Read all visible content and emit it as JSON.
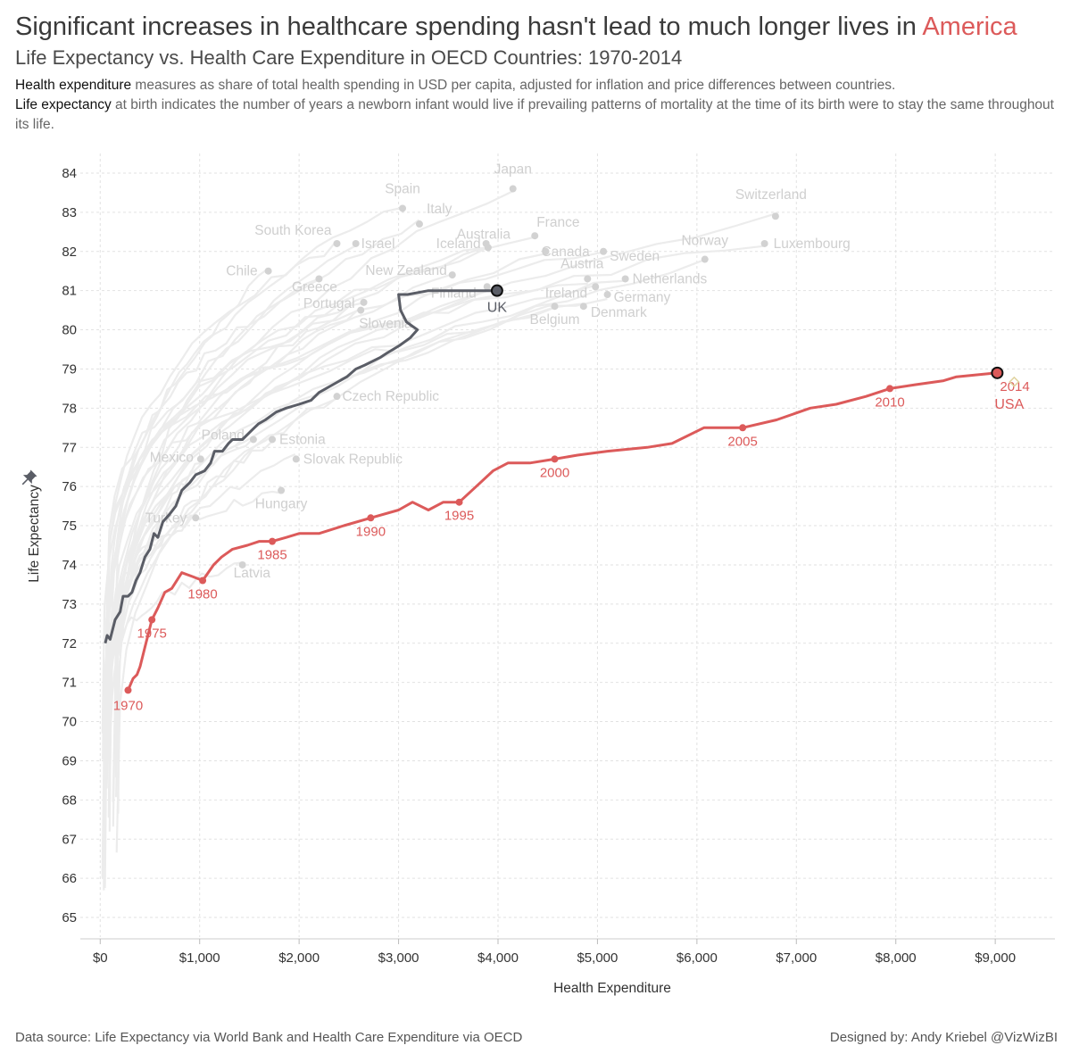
{
  "header": {
    "title_main": "Significant increases in healthcare spending hasn't lead to much longer lives in ",
    "title_accent": "America",
    "subtitle": "Life Expectancy vs. Health Care Expenditure in OECD Countries: 1970-2014",
    "desc1_term": "Health expenditure",
    "desc1_text": " measures as share of total health spending in USD per capita, adjusted for inflation and price differences between countries.",
    "desc2_term": "Life expectancy",
    "desc2_text": " at birth indicates the number of years a newborn infant would live if prevailing patterns of mortality at the time of its birth were to stay the same throughout its life."
  },
  "footer": {
    "source": "Data source: Life Expectancy via World Bank and Health Care Expenditure via OECD",
    "credit": "Designed by: Andy Kriebel @VizWizBI"
  },
  "colors": {
    "usa": "#dc5a5a",
    "uk": "#5a5d66",
    "other_lines": "#ececec",
    "other_dots": "#d2d2d2",
    "other_labels": "#cfcfcf",
    "grid": "#e2e2e2",
    "axis_text": "#333333"
  },
  "chart_data": {
    "type": "line",
    "xlabel": "Health Expenditure",
    "ylabel": "Life Expectancy",
    "xlim": [
      -200,
      9600
    ],
    "ylim": [
      64.5,
      84.5
    ],
    "x_ticks": [
      0,
      1000,
      2000,
      3000,
      4000,
      5000,
      6000,
      7000,
      8000,
      9000
    ],
    "x_tick_labels": [
      "$0",
      "$1,000",
      "$2,000",
      "$3,000",
      "$4,000",
      "$5,000",
      "$6,000",
      "$7,000",
      "$8,000",
      "$9,000"
    ],
    "y_ticks": [
      65,
      66,
      67,
      68,
      69,
      70,
      71,
      72,
      73,
      74,
      75,
      76,
      77,
      78,
      79,
      80,
      81,
      82,
      83,
      84
    ],
    "grid": true,
    "series": [
      {
        "name": "USA",
        "label": "USA",
        "highlight": true,
        "points": [
          [
            280,
            70.8
          ],
          [
            330,
            71.1
          ],
          [
            370,
            71.2
          ],
          [
            400,
            71.4
          ],
          [
            450,
            71.9
          ],
          [
            520,
            72.6
          ],
          [
            580,
            72.9
          ],
          [
            650,
            73.3
          ],
          [
            720,
            73.4
          ],
          [
            820,
            73.8
          ],
          [
            930,
            73.7
          ],
          [
            1030,
            73.6
          ],
          [
            1140,
            74.0
          ],
          [
            1220,
            74.2
          ],
          [
            1330,
            74.4
          ],
          [
            1480,
            74.5
          ],
          [
            1600,
            74.6
          ],
          [
            1730,
            74.6
          ],
          [
            1870,
            74.7
          ],
          [
            2000,
            74.8
          ],
          [
            2200,
            74.8
          ],
          [
            2450,
            75.0
          ],
          [
            2720,
            75.2
          ],
          [
            3000,
            75.4
          ],
          [
            3140,
            75.6
          ],
          [
            3300,
            75.4
          ],
          [
            3450,
            75.6
          ],
          [
            3610,
            75.6
          ],
          [
            3780,
            76.0
          ],
          [
            3950,
            76.4
          ],
          [
            4100,
            76.6
          ],
          [
            4320,
            76.6
          ],
          [
            4570,
            76.7
          ],
          [
            4800,
            76.8
          ],
          [
            5100,
            76.9
          ],
          [
            5500,
            77.0
          ],
          [
            5750,
            77.1
          ],
          [
            6070,
            77.5
          ],
          [
            6460,
            77.5
          ],
          [
            6800,
            77.7
          ],
          [
            7140,
            78.0
          ],
          [
            7400,
            78.1
          ],
          [
            7700,
            78.3
          ],
          [
            7940,
            78.5
          ],
          [
            8200,
            78.6
          ],
          [
            8480,
            78.7
          ],
          [
            8610,
            78.8
          ],
          [
            9020,
            78.9
          ]
        ],
        "year_markers": [
          {
            "year": "1970",
            "x": 280,
            "y": 70.8
          },
          {
            "year": "1975",
            "x": 520,
            "y": 72.6
          },
          {
            "year": "1980",
            "x": 1030,
            "y": 73.6
          },
          {
            "year": "1985",
            "x": 1730,
            "y": 74.6
          },
          {
            "year": "1990",
            "x": 2720,
            "y": 75.2
          },
          {
            "year": "1995",
            "x": 3610,
            "y": 75.6
          },
          {
            "year": "2000",
            "x": 4570,
            "y": 76.7
          },
          {
            "year": "2005",
            "x": 6460,
            "y": 77.5
          },
          {
            "year": "2010",
            "x": 7940,
            "y": 78.5
          },
          {
            "year": "2014",
            "x": 9020,
            "y": 78.9
          }
        ]
      },
      {
        "name": "UK",
        "label": "UK",
        "highlight": true,
        "points": [
          [
            50,
            72.0
          ],
          [
            70,
            72.2
          ],
          [
            100,
            72.1
          ],
          [
            150,
            72.6
          ],
          [
            200,
            72.8
          ],
          [
            230,
            73.2
          ],
          [
            280,
            73.2
          ],
          [
            320,
            73.3
          ],
          [
            360,
            73.6
          ],
          [
            400,
            73.8
          ],
          [
            450,
            74.2
          ],
          [
            500,
            74.4
          ],
          [
            540,
            74.8
          ],
          [
            580,
            74.7
          ],
          [
            630,
            75.1
          ],
          [
            700,
            75.3
          ],
          [
            760,
            75.5
          ],
          [
            820,
            75.9
          ],
          [
            900,
            76.1
          ],
          [
            960,
            76.3
          ],
          [
            1050,
            76.4
          ],
          [
            1110,
            76.6
          ],
          [
            1150,
            76.9
          ],
          [
            1230,
            76.9
          ],
          [
            1290,
            77.1
          ],
          [
            1330,
            77.2
          ],
          [
            1430,
            77.2
          ],
          [
            1510,
            77.4
          ],
          [
            1590,
            77.6
          ],
          [
            1660,
            77.7
          ],
          [
            1770,
            77.9
          ],
          [
            1870,
            78.0
          ],
          [
            2000,
            78.1
          ],
          [
            2120,
            78.2
          ],
          [
            2200,
            78.4
          ],
          [
            2340,
            78.6
          ],
          [
            2480,
            78.8
          ],
          [
            2570,
            79.0
          ],
          [
            2660,
            79.1
          ],
          [
            2820,
            79.3
          ],
          [
            2880,
            79.4
          ],
          [
            3010,
            79.6
          ],
          [
            3120,
            79.8
          ],
          [
            3190,
            80.0
          ],
          [
            3080,
            80.2
          ],
          [
            3020,
            80.5
          ],
          [
            3000,
            80.9
          ],
          [
            3090,
            80.9
          ],
          [
            3300,
            81.0
          ],
          [
            3990,
            81.0
          ]
        ]
      }
    ],
    "countries": [
      {
        "name": "Japan",
        "x": 4150,
        "y": 83.6
      },
      {
        "name": "Spain",
        "x": 3040,
        "y": 83.1
      },
      {
        "name": "Italy",
        "x": 3210,
        "y": 82.7
      },
      {
        "name": "Switzerland",
        "x": 6790,
        "y": 82.9
      },
      {
        "name": "South Korea",
        "x": 2380,
        "y": 82.2
      },
      {
        "name": "Israel",
        "x": 2570,
        "y": 82.2
      },
      {
        "name": "Australia",
        "x": 3900,
        "y": 82.1
      },
      {
        "name": "France",
        "x": 4370,
        "y": 82.4
      },
      {
        "name": "Canada",
        "x": 4480,
        "y": 82.0
      },
      {
        "name": "Iceland",
        "x": 3880,
        "y": 82.2
      },
      {
        "name": "Luxembourg",
        "x": 6680,
        "y": 82.2
      },
      {
        "name": "Norway",
        "x": 6080,
        "y": 81.8
      },
      {
        "name": "Sweden",
        "x": 5060,
        "y": 82.0
      },
      {
        "name": "New Zealand",
        "x": 3540,
        "y": 81.4
      },
      {
        "name": "Chile",
        "x": 1690,
        "y": 81.5
      },
      {
        "name": "Austria",
        "x": 4900,
        "y": 81.3
      },
      {
        "name": "Netherlands",
        "x": 5280,
        "y": 81.3
      },
      {
        "name": "Greece",
        "x": 2200,
        "y": 81.3
      },
      {
        "name": "Finland",
        "x": 3890,
        "y": 81.1
      },
      {
        "name": "Ireland",
        "x": 4980,
        "y": 81.1
      },
      {
        "name": "Germany",
        "x": 5100,
        "y": 80.9
      },
      {
        "name": "Portugal",
        "x": 2650,
        "y": 80.7
      },
      {
        "name": "Slovenia",
        "x": 2620,
        "y": 80.5
      },
      {
        "name": "Belgium",
        "x": 4570,
        "y": 80.6
      },
      {
        "name": "Denmark",
        "x": 4860,
        "y": 80.6
      },
      {
        "name": "Czech Republic",
        "x": 2380,
        "y": 78.3
      },
      {
        "name": "Poland",
        "x": 1540,
        "y": 77.2
      },
      {
        "name": "Estonia",
        "x": 1730,
        "y": 77.2
      },
      {
        "name": "Mexico",
        "x": 1010,
        "y": 76.7
      },
      {
        "name": "Slovak Republic",
        "x": 1970,
        "y": 76.7
      },
      {
        "name": "Hungary",
        "x": 1820,
        "y": 75.9
      },
      {
        "name": "Turkey",
        "x": 960,
        "y": 75.2
      },
      {
        "name": "Latvia",
        "x": 1430,
        "y": 74.0
      }
    ]
  }
}
